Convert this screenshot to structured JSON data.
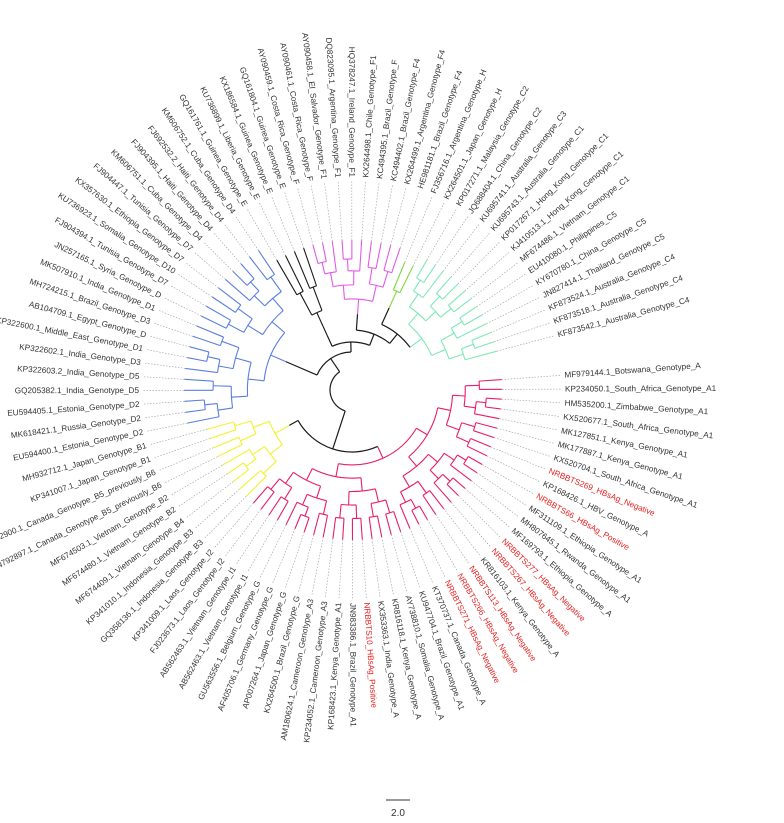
{
  "colors": {
    "D": "#5b7fe0",
    "E": "#1a1a1a",
    "F": "#e35ae8",
    "H": "#7fd83a",
    "C": "#7fe8b8",
    "A": "#e81e6a",
    "B": "#f2f230",
    "root": "#1a1a1a",
    "highlight": "#e82020",
    "label": "#333333"
  },
  "scale_bar": {
    "label": "2.0"
  },
  "leaves": [
    {
      "label": "MF979144.1_Botswana_Genotype_A",
      "clade": "A"
    },
    {
      "label": "KP234050.1_South_Africa_Genotype_A1",
      "clade": "A"
    },
    {
      "label": "HM535200.1_Zimbabwe_Genotype_A1",
      "clade": "A"
    },
    {
      "label": "KX520677.1_South_Africa_Genotype_A1",
      "clade": "A"
    },
    {
      "label": "MK127851.1_Kenya_Genotype_A1",
      "clade": "A"
    },
    {
      "label": "MK177887.1_Kenya_Genotype_A1",
      "clade": "A"
    },
    {
      "label": "KX520704.1_South_Africa_Genotype_A1",
      "clade": "A"
    },
    {
      "label": "NRBBTS269_HBsAg_Negative",
      "clade": "A",
      "highlight": true
    },
    {
      "label": "KP168426.1_HBV_Genotype_A",
      "clade": "A"
    },
    {
      "label": "NRBBTS66_HBsAg_Positive",
      "clade": "A",
      "highlight": true
    },
    {
      "label": "MF311109.1_Ethiopia_Genotype_A1",
      "clade": "A"
    },
    {
      "label": "MH807645.1_Rwanda_Genotype_A1",
      "clade": "A"
    },
    {
      "label": "MF169793.1_Ethiopia_Genotype_A",
      "clade": "A"
    },
    {
      "label": "NRBBTS277_HBsAg_Negative",
      "clade": "A",
      "highlight": true
    },
    {
      "label": "NRBBTS267_HBsAg_Negative",
      "clade": "A",
      "highlight": true
    },
    {
      "label": "KR816103.1_Kenya_Genotype_A",
      "clade": "A"
    },
    {
      "label": "NRBBTS113_HBsAg_Negative",
      "clade": "A",
      "highlight": true
    },
    {
      "label": "NRBBTS266_HBsAg_Negative",
      "clade": "A",
      "highlight": true
    },
    {
      "label": "NRBBTS271_HBsAg_Negative",
      "clade": "A",
      "highlight": true
    },
    {
      "label": "KT370737.1_Canada_Genotype_A",
      "clade": "A"
    },
    {
      "label": "KU947704.1_Brazil_Genotype_A1",
      "clade": "A"
    },
    {
      "label": "AY738810.1_Somalia_Genotype_A",
      "clade": "A"
    },
    {
      "label": "KR816118.1_Kenya_Genotype_A",
      "clade": "A"
    },
    {
      "label": "KX353363.1_India_Genotype_A",
      "clade": "A"
    },
    {
      "label": "NRBBTS10_HBsAg_Positive",
      "clade": "A",
      "highlight": true
    },
    {
      "label": "JN983386.1_Brazil_Genotype_A1",
      "clade": "A"
    },
    {
      "label": "KP168423.1_Kenya_Genotype_A1",
      "clade": "A"
    },
    {
      "label": "KP234052.1_Cameroon_Genotype_A3",
      "clade": "A"
    },
    {
      "label": "AM180624.1_Cameroon_Genotype_A3",
      "clade": "A"
    },
    {
      "label": "KX264500.1_Brazil_Genotype_G",
      "clade": "A"
    },
    {
      "label": "AP007264.1_Japan_Genotype_G",
      "clade": "A"
    },
    {
      "label": "AF405706.1_Germany_Genotype_G",
      "clade": "A"
    },
    {
      "label": "GU563556.1_Belgium_Genotype_G",
      "clade": "A"
    },
    {
      "label": "AB562463.1_Vietnam_Genotype_I1",
      "clade": "A"
    },
    {
      "label": "AB562463.1_Vietnam_Genotype_I1",
      "clade": "A"
    },
    {
      "label": "FJ023673.1_Laos_Genotype_I2",
      "clade": "A"
    },
    {
      "label": "KP341009.1_Laos_Genotype_I2",
      "clade": "A"
    },
    {
      "label": "GQ358136.1_Indonesia_Genotype_B3",
      "clade": "B"
    },
    {
      "label": "KP341010.1_Indonesia_Genotype_B3",
      "clade": "B"
    },
    {
      "label": "MF674409.1_Vietnam_Genotype_B4",
      "clade": "B"
    },
    {
      "label": "MF674480.1_Vietnam_Genotype_B2",
      "clade": "B"
    },
    {
      "label": "MF674503.1_Vietnam_Genotype_B2",
      "clade": "B"
    },
    {
      "label": "JN792897.1_Canada_Genotype_B5_previously_B6",
      "clade": "B"
    },
    {
      "label": "JN792900.1_Canada_Genotype_B5_previously_B6",
      "clade": "B"
    },
    {
      "label": "KP341007.1_Japan_Genotype_B1",
      "clade": "B"
    },
    {
      "label": "MH932712.1_Japan_Genotype_B1",
      "clade": "B"
    },
    {
      "label": "EU594400.1_Estonia_Genotype_D2",
      "clade": "D"
    },
    {
      "label": "MK618421.1_Russia_Genotype_D2",
      "clade": "D"
    },
    {
      "label": "EU594405.1_Estonia_Genotype_D2",
      "clade": "D"
    },
    {
      "label": "GQ205382.1_India_Genotype_D5",
      "clade": "D"
    },
    {
      "label": "KP322603.2_India_Genotype_D5",
      "clade": "D"
    },
    {
      "label": "KP322602.1_India_Genotype_D3",
      "clade": "D"
    },
    {
      "label": "KP322600.1_Middle_East_Genotype_D1",
      "clade": "D"
    },
    {
      "label": "AB104709.1_Egypt_Genotype_D",
      "clade": "D"
    },
    {
      "label": "MH724215.1_Brazil_Genotype_D3",
      "clade": "D"
    },
    {
      "label": "MK507910.1_India_Genotype_D1",
      "clade": "D"
    },
    {
      "label": "JN257165.1_Syria_Genotype_D",
      "clade": "D"
    },
    {
      "label": "FJ904394.1_Tunisia_Genotype_D7",
      "clade": "D"
    },
    {
      "label": "KU736923.1_Somalia_Genotype_D10",
      "clade": "D"
    },
    {
      "label": "KX357630.1_Ethiopia_Genotype_D7",
      "clade": "D"
    },
    {
      "label": "FJ904447.1_Tunisia_Genotype_D7",
      "clade": "D"
    },
    {
      "label": "KM606751.1_Cuba_Genotype_D4",
      "clade": "D"
    },
    {
      "label": "FJ904395.1_Haiti_Genotype_D4",
      "clade": "D"
    },
    {
      "label": "FJ692532.2_Haiti_Genotype_D4",
      "clade": "D"
    },
    {
      "label": "KM606752.1_Cuba_Genotype_D4",
      "clade": "D"
    },
    {
      "label": "GQ161761.1_Guinea_Genotype_E",
      "clade": "E"
    },
    {
      "label": "KU736899.1_Liberia_Genotype_E",
      "clade": "E"
    },
    {
      "label": "KX186584.1_Guinea_Genotype_E",
      "clade": "E"
    },
    {
      "label": "GQ161804.1_Guinea_Genotype_E",
      "clade": "E"
    },
    {
      "label": "AY090459.1_Costa_Rica_Genotype_F",
      "clade": "F"
    },
    {
      "label": "AY090461.1_Costa_Rica_Genotype_F",
      "clade": "F"
    },
    {
      "label": "AY090458.1_El_Salvador_Genotype_F1",
      "clade": "F"
    },
    {
      "label": "DQ823095.1_Argentina_Genotype_F1",
      "clade": "F"
    },
    {
      "label": "HQ378247.1_Ireland_Genotype_F1",
      "clade": "F"
    },
    {
      "label": "KX264498.1_Chile_Genotype_F1",
      "clade": "F"
    },
    {
      "label": "KC494395.1_Brazil_Genotype_F",
      "clade": "F"
    },
    {
      "label": "KC494402.1_Brazil_Genotype_F4",
      "clade": "F"
    },
    {
      "label": "KX264499.1_Argentina_Genotype_F4",
      "clade": "F"
    },
    {
      "label": "HE981181.1_Brazil_Genotype_F4",
      "clade": "F"
    },
    {
      "label": "FJ356716.1_Argentina_Genotype_H",
      "clade": "H"
    },
    {
      "label": "KX264501.1_Japan_Genotype_H",
      "clade": "H"
    },
    {
      "label": "KP017271.1_Malaysia_Genotype_C2",
      "clade": "C"
    },
    {
      "label": "JQ688404.1_China_Genotype_C2",
      "clade": "C"
    },
    {
      "label": "KU695741.1_Australia_Genotype_C3",
      "clade": "C"
    },
    {
      "label": "KU695743.1_Australia_Genotype_C1",
      "clade": "C"
    },
    {
      "label": "KP017267.1_Hong_Kong_Genotype_C1",
      "clade": "C"
    },
    {
      "label": "KJ410513.1_Hong_Kong_Genotype_C1",
      "clade": "C"
    },
    {
      "label": "MF674486.1_Vietnam_Genotype_C1",
      "clade": "C"
    },
    {
      "label": "EU410080.1_Philippines_C5",
      "clade": "C"
    },
    {
      "label": "KY670780.1_China_Genotype_C5",
      "clade": "C"
    },
    {
      "label": "JN827414.1_Thailand_Genotype_C5",
      "clade": "C"
    },
    {
      "label": "KF873524.1_Australia_Genotype_C4",
      "clade": "C"
    },
    {
      "label": "KF873518.1_Australia_Genotype_C4",
      "clade": "C"
    },
    {
      "label": "KF873542.1_Australia_Genotype_C4",
      "clade": "C"
    }
  ]
}
